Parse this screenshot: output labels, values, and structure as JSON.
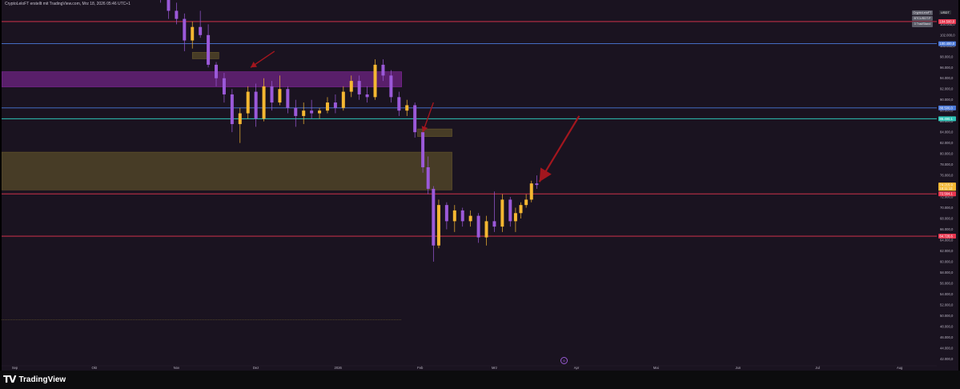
{
  "header": {
    "caption": "CryptoLeloFT erstellt mit TradingView.com, Mrz 18, 2026 05:46 UTC+1"
  },
  "symbol_box": {
    "lines": [
      "CryptoLeloFT",
      "BTCUSDT.P",
      "3 TradStand"
    ]
  },
  "currency": "USDT",
  "footer": {
    "brand": "TradingView",
    "mark": "TV"
  },
  "colors": {
    "background": "#1a1320",
    "bull_candle": "#f5b731",
    "bear_candle": "#9b59d9",
    "red_line": "#e8364f",
    "blue_line": "#4a78d8",
    "teal_line": "#2ec4b6",
    "purple_zone": "#8e2aa8",
    "olive_zone": "#6e5e2c",
    "arrow": "#a3161e"
  },
  "chart_data": {
    "type": "candlestick",
    "y_axis": {
      "ylim": [
        41000,
        108500
      ],
      "ticks": [
        42000,
        44000,
        46000,
        48000,
        50000,
        52000,
        54000,
        56000,
        58000,
        60000,
        62000,
        64000,
        66000,
        68000,
        70000,
        72000,
        74000,
        76000,
        78000,
        80000,
        82000,
        84000,
        86000,
        88000,
        90000,
        92000,
        94000,
        96000,
        98000,
        100000,
        102000,
        104000
      ],
      "tick_labels": [
        "42.000,0",
        "44.000,0",
        "46.000,0",
        "48.000,0",
        "50.000,0",
        "52.000,0",
        "54.000,0",
        "56.000,0",
        "58.000,0",
        "60.000,0",
        "62.000,0",
        "64.000,0",
        "66.000,0",
        "68.000,0",
        "70.000,0",
        "72.000,0",
        "74.000,0",
        "76.000,0",
        "78.000,0",
        "80.000,0",
        "82.000,0",
        "84.000,0",
        "86.000,0",
        "88.000,0",
        "90.000,0",
        "92.000,0",
        "94.000,0",
        "96.000,0",
        "98.000,0",
        "100.000,0",
        "102.000,0",
        "104.000,0"
      ],
      "scale": "linear"
    },
    "x_axis": {
      "tick_labels": [
        "Sep",
        "Okt",
        "Nov",
        "Dez",
        "2026",
        "Feb",
        "Mrz",
        "Apr",
        "Mai",
        "Jun",
        "Jul",
        "Aug"
      ],
      "tick_positions": [
        "2025-09-01",
        "2025-10-01",
        "2025-11-01",
        "2025-12-01",
        "2026-01-01",
        "2026-02-01",
        "2026-03-01",
        "2026-04-01",
        "2026-05-01",
        "2026-06-01",
        "2026-07-01",
        "2026-08-01"
      ]
    },
    "price_tags": [
      {
        "value": 104500,
        "label": "104.500,0",
        "color": "#e8364f"
      },
      {
        "value": 100400,
        "label": "100.400,0",
        "color": "#4a78d8"
      },
      {
        "value": 88500,
        "label": "88.500,0",
        "color": "#4a78d8"
      },
      {
        "value": 86490,
        "label": "86.490,1",
        "color": "#2ec4b6"
      },
      {
        "value": 74215.9,
        "label": "74.215,9",
        "color": "#f5b731"
      },
      {
        "value": 73580,
        "label": "18:11:13",
        "color": "#f5b731"
      },
      {
        "value": 72564.1,
        "label": "72.564,1",
        "color": "#e8364f"
      },
      {
        "value": 64728.6,
        "label": "64.728,6",
        "color": "#e8364f"
      }
    ],
    "horizontal_lines": [
      {
        "value": 104500,
        "color": "#e8364f"
      },
      {
        "value": 100400,
        "color": "#4a78d8"
      },
      {
        "value": 88500,
        "color": "#4a78d8"
      },
      {
        "value": 86490,
        "color": "#2ec4b6"
      },
      {
        "value": 72564.1,
        "color": "#e8364f"
      },
      {
        "value": 64728.6,
        "color": "#e8364f"
      }
    ],
    "zones": [
      {
        "name": "purple-supply-zone",
        "from": "2025-08-27",
        "to": "2026-01-25",
        "low": 92400,
        "high": 95200,
        "color": "#8e2aa8"
      },
      {
        "name": "olive-zone",
        "from": "2025-08-27",
        "to": "2026-02-13",
        "low": 73300,
        "high": 80300,
        "color": "#6e5e2c"
      },
      {
        "name": "small-olive-zone-feb",
        "from": "2026-01-31",
        "to": "2026-02-13",
        "low": 83200,
        "high": 84600,
        "color": "#6e5e2c"
      },
      {
        "name": "small-olive-zone-nov",
        "from": "2025-11-07",
        "to": "2025-11-17",
        "low": 97600,
        "high": 98800,
        "color": "#6e5e2c"
      }
    ],
    "candles": [
      {
        "d": "2025-10-26",
        "o": 111000,
        "h": 112000,
        "l": 108000,
        "c": 109500
      },
      {
        "d": "2025-10-29",
        "o": 109500,
        "h": 111000,
        "l": 105000,
        "c": 106500
      },
      {
        "d": "2025-11-01",
        "o": 106500,
        "h": 108000,
        "l": 104000,
        "c": 105000
      },
      {
        "d": "2025-11-04",
        "o": 105000,
        "h": 106000,
        "l": 99000,
        "c": 101000
      },
      {
        "d": "2025-11-07",
        "o": 101000,
        "h": 104500,
        "l": 99500,
        "c": 103500
      },
      {
        "d": "2025-11-10",
        "o": 103500,
        "h": 106500,
        "l": 101500,
        "c": 102000
      },
      {
        "d": "2025-11-13",
        "o": 102000,
        "h": 104000,
        "l": 96000,
        "c": 96500
      },
      {
        "d": "2025-11-16",
        "o": 96500,
        "h": 97000,
        "l": 92500,
        "c": 94000
      },
      {
        "d": "2025-11-19",
        "o": 94000,
        "h": 95000,
        "l": 89500,
        "c": 91000
      },
      {
        "d": "2025-11-22",
        "o": 91000,
        "h": 92000,
        "l": 84000,
        "c": 85500
      },
      {
        "d": "2025-11-25",
        "o": 85500,
        "h": 88500,
        "l": 82000,
        "c": 87500
      },
      {
        "d": "2025-11-28",
        "o": 87500,
        "h": 92500,
        "l": 86500,
        "c": 91500
      },
      {
        "d": "2025-12-01",
        "o": 91500,
        "h": 93000,
        "l": 85000,
        "c": 86500
      },
      {
        "d": "2025-12-04",
        "o": 86500,
        "h": 94000,
        "l": 86000,
        "c": 92500
      },
      {
        "d": "2025-12-07",
        "o": 92500,
        "h": 93500,
        "l": 88000,
        "c": 89500
      },
      {
        "d": "2025-12-10",
        "o": 89500,
        "h": 94500,
        "l": 89000,
        "c": 92000
      },
      {
        "d": "2025-12-13",
        "o": 92000,
        "h": 92500,
        "l": 87500,
        "c": 88500
      },
      {
        "d": "2025-12-16",
        "o": 88500,
        "h": 90000,
        "l": 85000,
        "c": 87000
      },
      {
        "d": "2025-12-19",
        "o": 87000,
        "h": 89500,
        "l": 85500,
        "c": 88000
      },
      {
        "d": "2025-12-22",
        "o": 88000,
        "h": 90000,
        "l": 86500,
        "c": 87500
      },
      {
        "d": "2025-12-25",
        "o": 87500,
        "h": 88500,
        "l": 86500,
        "c": 88000
      },
      {
        "d": "2025-12-28",
        "o": 88000,
        "h": 90500,
        "l": 87500,
        "c": 89500
      },
      {
        "d": "2025-12-31",
        "o": 89500,
        "h": 91000,
        "l": 87500,
        "c": 88500
      },
      {
        "d": "2026-01-03",
        "o": 88500,
        "h": 92500,
        "l": 88000,
        "c": 91500
      },
      {
        "d": "2026-01-06",
        "o": 91500,
        "h": 94500,
        "l": 90500,
        "c": 93500
      },
      {
        "d": "2026-01-09",
        "o": 93500,
        "h": 94500,
        "l": 90000,
        "c": 91000
      },
      {
        "d": "2026-01-12",
        "o": 91000,
        "h": 92500,
        "l": 89500,
        "c": 90500
      },
      {
        "d": "2026-01-15",
        "o": 90500,
        "h": 97500,
        "l": 90000,
        "c": 96500
      },
      {
        "d": "2026-01-18",
        "o": 96500,
        "h": 97500,
        "l": 93500,
        "c": 94500
      },
      {
        "d": "2026-01-21",
        "o": 94500,
        "h": 95500,
        "l": 89500,
        "c": 90500
      },
      {
        "d": "2026-01-24",
        "o": 90500,
        "h": 91500,
        "l": 87000,
        "c": 88000
      },
      {
        "d": "2026-01-27",
        "o": 88000,
        "h": 90000,
        "l": 87000,
        "c": 89000
      },
      {
        "d": "2026-01-30",
        "o": 89000,
        "h": 89500,
        "l": 83000,
        "c": 84000
      },
      {
        "d": "2026-02-02",
        "o": 84000,
        "h": 84500,
        "l": 76500,
        "c": 77500
      },
      {
        "d": "2026-02-04",
        "o": 77500,
        "h": 79500,
        "l": 72500,
        "c": 73500
      },
      {
        "d": "2026-02-06",
        "o": 73500,
        "h": 74000,
        "l": 60000,
        "c": 63000
      },
      {
        "d": "2026-02-08",
        "o": 63000,
        "h": 71500,
        "l": 62500,
        "c": 70500
      },
      {
        "d": "2026-02-11",
        "o": 70500,
        "h": 71000,
        "l": 66000,
        "c": 67500
      },
      {
        "d": "2026-02-14",
        "o": 67500,
        "h": 70500,
        "l": 65500,
        "c": 69500
      },
      {
        "d": "2026-02-17",
        "o": 69500,
        "h": 70000,
        "l": 66500,
        "c": 67500
      },
      {
        "d": "2026-02-20",
        "o": 67500,
        "h": 69500,
        "l": 66500,
        "c": 68500
      },
      {
        "d": "2026-02-23",
        "o": 68500,
        "h": 69000,
        "l": 63500,
        "c": 64500
      },
      {
        "d": "2026-02-26",
        "o": 64500,
        "h": 68500,
        "l": 63000,
        "c": 67500
      },
      {
        "d": "2026-03-01",
        "o": 67500,
        "h": 73000,
        "l": 65500,
        "c": 66500
      },
      {
        "d": "2026-03-04",
        "o": 66500,
        "h": 72500,
        "l": 65500,
        "c": 71500
      },
      {
        "d": "2026-03-07",
        "o": 71500,
        "h": 72000,
        "l": 66500,
        "c": 67500
      },
      {
        "d": "2026-03-09",
        "o": 67500,
        "h": 70000,
        "l": 65500,
        "c": 69000
      },
      {
        "d": "2026-03-11",
        "o": 69000,
        "h": 71000,
        "l": 68000,
        "c": 70500
      },
      {
        "d": "2026-03-13",
        "o": 70500,
        "h": 72500,
        "l": 70000,
        "c": 71500
      },
      {
        "d": "2026-03-15",
        "o": 71500,
        "h": 75000,
        "l": 71000,
        "c": 74500
      },
      {
        "d": "2026-03-17",
        "o": 74500,
        "h": 76000,
        "l": 73500,
        "c": 74216
      }
    ],
    "annotations": [
      {
        "type": "arrow",
        "tip_date": "2025-11-29",
        "tip_value": 96000,
        "tail_date": "2025-12-08",
        "tail_value": 99000
      },
      {
        "type": "arrow",
        "tip_date": "2026-02-02",
        "tip_value": 84000,
        "tail_date": "2026-02-06",
        "tail_value": 89500
      },
      {
        "type": "arrow",
        "tip_date": "2026-03-18",
        "tip_value": 74800,
        "tail_date": "2026-04-02",
        "tail_value": 87000
      }
    ]
  }
}
